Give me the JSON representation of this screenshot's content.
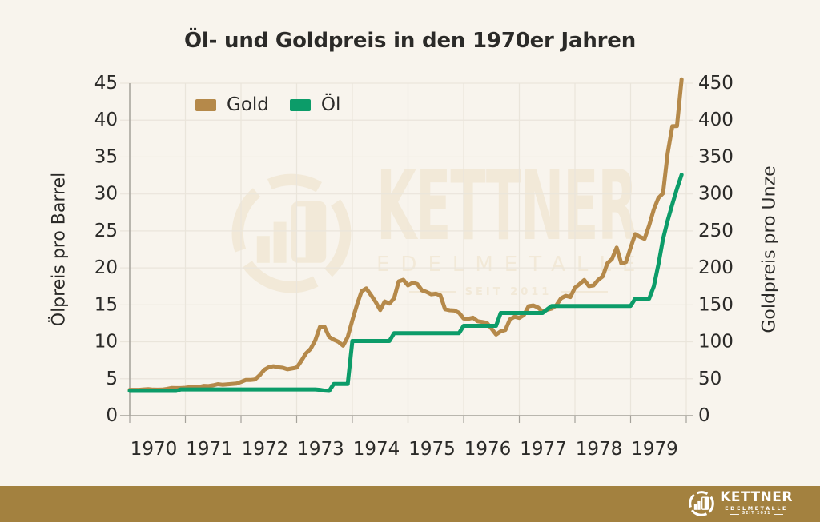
{
  "title": "Öl- und Goldpreis in den 1970er Jahren",
  "chart_data": {
    "type": "line",
    "title": "Öl- und Goldpreis in den 1970er Jahren",
    "x_resolution": "monthly",
    "x_start_year": 1970,
    "x_end_year": 1980,
    "x_tick_labels": [
      "1970",
      "1971",
      "1972",
      "1973",
      "1974",
      "1975",
      "1976",
      "1977",
      "1978",
      "1979"
    ],
    "grid": true,
    "legend_position": "top-left",
    "left_axis": {
      "label": "Ölpreis pro Barrel",
      "min": 0,
      "max": 45,
      "ticks": [
        0,
        5,
        10,
        15,
        20,
        25,
        30,
        35,
        40,
        45
      ]
    },
    "right_axis": {
      "label": "Goldpreis pro Unze",
      "min": 0,
      "max": 450,
      "ticks": [
        0,
        50,
        100,
        150,
        200,
        250,
        300,
        350,
        400,
        450
      ]
    },
    "series": [
      {
        "name": "Gold",
        "axis": "right",
        "unit": "USD pro Unze",
        "color": "#b5894a",
        "values": [
          35.0,
          35.0,
          35.1,
          35.6,
          36.0,
          35.4,
          35.3,
          35.4,
          36.2,
          37.5,
          37.4,
          37.4,
          37.9,
          38.7,
          38.9,
          39.0,
          40.5,
          40.1,
          41.2,
          42.7,
          42.0,
          42.5,
          42.9,
          43.5,
          45.8,
          48.3,
          48.3,
          49.0,
          54.6,
          62.1,
          65.7,
          67.0,
          65.5,
          64.9,
          62.9,
          63.9,
          65.1,
          74.2,
          84.4,
          90.5,
          102.0,
          120.1,
          120.2,
          106.8,
          103.0,
          100.1,
          94.8,
          106.5,
          129.2,
          150.2,
          168.4,
          172.2,
          163.3,
          154.1,
          143.0,
          154.6,
          151.8,
          158.8,
          181.7,
          183.9,
          176.3,
          179.9,
          178.2,
          169.7,
          167.4,
          164.3,
          165.1,
          162.8,
          144.1,
          142.8,
          142.4,
          139.3,
          131.5,
          131.1,
          132.6,
          127.9,
          126.9,
          125.7,
          117.8,
          109.9,
          114.2,
          116.1,
          130.5,
          133.9,
          132.3,
          136.3,
          148.2,
          149.2,
          146.6,
          140.8,
          143.4,
          145.0,
          149.5,
          158.9,
          162.1,
          160.5,
          173.2,
          178.2,
          183.7,
          175.3,
          176.3,
          183.8,
          188.7,
          206.3,
          212.1,
          227.4,
          206.1,
          207.8,
          227.3,
          245.7,
          242.0,
          239.2,
          257.6,
          279.1,
          294.7,
          300.8,
          355.1,
          391.7,
          392.0,
          455.1
        ]
      },
      {
        "name": "Öl",
        "axis": "left",
        "unit": "USD pro Barrel",
        "color": "#0c9c69",
        "values": [
          3.35,
          3.35,
          3.35,
          3.35,
          3.35,
          3.35,
          3.35,
          3.35,
          3.35,
          3.35,
          3.35,
          3.56,
          3.56,
          3.56,
          3.56,
          3.56,
          3.56,
          3.56,
          3.56,
          3.56,
          3.56,
          3.56,
          3.56,
          3.56,
          3.56,
          3.56,
          3.56,
          3.56,
          3.56,
          3.56,
          3.56,
          3.56,
          3.56,
          3.56,
          3.56,
          3.56,
          3.56,
          3.56,
          3.56,
          3.56,
          3.56,
          3.5,
          3.4,
          3.35,
          4.31,
          4.31,
          4.31,
          4.31,
          10.11,
          10.11,
          10.11,
          10.11,
          10.11,
          10.11,
          10.11,
          10.11,
          10.11,
          11.16,
          11.16,
          11.16,
          11.16,
          11.16,
          11.16,
          11.16,
          11.16,
          11.16,
          11.16,
          11.16,
          11.16,
          11.16,
          11.16,
          11.16,
          12.17,
          12.17,
          12.17,
          12.17,
          12.17,
          12.17,
          12.17,
          12.17,
          13.9,
          13.9,
          13.9,
          13.9,
          13.9,
          13.9,
          13.9,
          13.9,
          13.9,
          13.9,
          14.4,
          14.85,
          14.85,
          14.85,
          14.85,
          14.85,
          14.85,
          14.85,
          14.85,
          14.85,
          14.85,
          14.85,
          14.85,
          14.85,
          14.85,
          14.85,
          14.85,
          14.85,
          14.85,
          15.85,
          15.85,
          15.85,
          15.85,
          17.5,
          20.5,
          23.9,
          26.4,
          28.6,
          30.7,
          32.6
        ]
      }
    ]
  },
  "watermark": {
    "brand": "KETTNER",
    "subtitle": "EDELMETALLE",
    "since": "SEIT 2011"
  },
  "footer": {
    "brand": "KETTNER",
    "subtitle": "EDELMETALLE",
    "since": "SEIT 2011"
  },
  "colors": {
    "background": "#f8f4ed",
    "footer_bar": "#a3813f",
    "text": "#2b2a28",
    "grid": "#eae5db",
    "axis": "#a5a29b",
    "watermark": "#f2e9d8",
    "gold": "#b5894a",
    "oil_green": "#0c9c69"
  }
}
